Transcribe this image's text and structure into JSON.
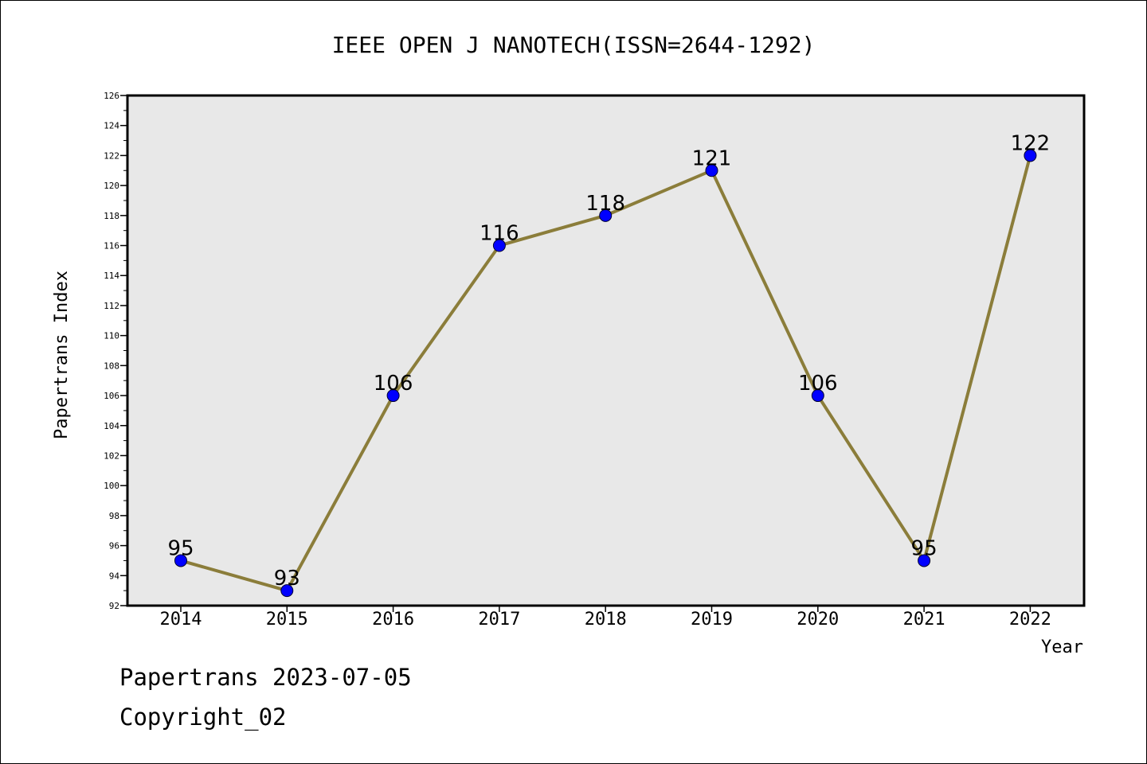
{
  "chart_data": {
    "type": "line",
    "title": "IEEE OPEN J NANOTECH(ISSN=2644-1292)",
    "xlabel": "Year",
    "ylabel": "Papertrans Index",
    "categories": [
      "2014",
      "2015",
      "2016",
      "2017",
      "2018",
      "2019",
      "2020",
      "2021",
      "2022"
    ],
    "values": [
      95,
      93,
      106,
      116,
      118,
      121,
      106,
      95,
      122
    ],
    "ylim": [
      92,
      126
    ],
    "yticks": [
      92,
      94,
      96,
      98,
      100,
      102,
      104,
      106,
      108,
      110,
      112,
      114,
      116,
      118,
      120,
      122,
      124,
      126
    ],
    "grid": false,
    "colors": {
      "line": "#8B7D3A",
      "marker": "#0000FF",
      "plot_background": "#E8E8E8"
    }
  },
  "footer": {
    "line1": "Papertrans 2023-07-05",
    "line2": "Copyright_02"
  }
}
